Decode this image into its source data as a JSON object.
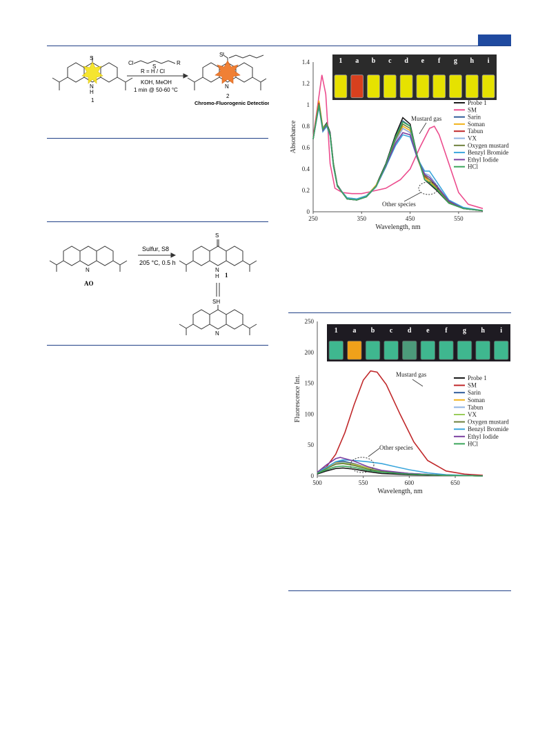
{
  "page": {
    "colors": {
      "rule": "#1f3f86",
      "tab": "#1f4aa0"
    }
  },
  "scheme1": {
    "reagent": "Cl",
    "r_label": "R = H / Cl",
    "s_label": "S",
    "r_group": "R",
    "conditions1": "KOH, MeOH",
    "conditions2": "1 min @ 50-60 °C",
    "compound1": "1",
    "compound2": "2",
    "caption": "Chromo-Fluorogenic Detection",
    "atom_N": "N",
    "atom_H": "H",
    "atom_S": "S"
  },
  "scheme2": {
    "start_label": "AO",
    "reagent": "Sulfur, S8",
    "conditions": "205 °C, 0.5 h",
    "product_label": "1",
    "atom_S": "S",
    "atom_SH": "SH",
    "atom_N": "N",
    "atom_H": "H"
  },
  "photo_labels": [
    "1",
    "a",
    "b",
    "c",
    "d",
    "e",
    "f",
    "g",
    "h",
    "i"
  ],
  "chart_data": [
    {
      "type": "line",
      "xlabel": "Wavelength, nm",
      "ylabel": "Absorbance",
      "xlim": [
        250,
        600
      ],
      "ylim": [
        0,
        1.4
      ],
      "xticks": [
        "250",
        "350",
        "450",
        "550"
      ],
      "yticks": [
        "0",
        "0.2",
        "0.4",
        "0.6",
        "0.8",
        "1",
        "1.2",
        "1.4"
      ],
      "legend_position": "right",
      "annotations": [
        "Mustard gas",
        "Other species"
      ],
      "series": [
        {
          "name": "Probe 1",
          "color": "#1a1a1a",
          "x": [
            250,
            262,
            270,
            278,
            285,
            292,
            300,
            320,
            340,
            360,
            380,
            400,
            420,
            435,
            450,
            465,
            480,
            490,
            505,
            530,
            560,
            600
          ],
          "y": [
            0.68,
            1.02,
            0.78,
            0.83,
            0.74,
            0.45,
            0.25,
            0.12,
            0.11,
            0.14,
            0.25,
            0.45,
            0.72,
            0.88,
            0.82,
            0.52,
            0.3,
            0.26,
            0.2,
            0.08,
            0.03,
            0.01
          ]
        },
        {
          "name": "SM",
          "color": "#ec4b8d",
          "x": [
            250,
            258,
            268,
            276,
            285,
            295,
            310,
            330,
            350,
            370,
            400,
            430,
            450,
            470,
            490,
            500,
            510,
            530,
            550,
            570,
            600
          ],
          "y": [
            0.7,
            0.95,
            1.28,
            1.1,
            0.45,
            0.22,
            0.18,
            0.17,
            0.17,
            0.19,
            0.22,
            0.3,
            0.4,
            0.6,
            0.78,
            0.8,
            0.72,
            0.45,
            0.18,
            0.07,
            0.03
          ]
        },
        {
          "name": "Sarin",
          "color": "#2e5b9a",
          "x": [
            250,
            262,
            270,
            278,
            285,
            292,
            300,
            320,
            340,
            360,
            380,
            400,
            420,
            435,
            450,
            465,
            480,
            490,
            505,
            530,
            560,
            600
          ],
          "y": [
            0.68,
            1.0,
            0.77,
            0.82,
            0.73,
            0.44,
            0.24,
            0.12,
            0.11,
            0.14,
            0.24,
            0.44,
            0.7,
            0.85,
            0.8,
            0.52,
            0.32,
            0.28,
            0.22,
            0.09,
            0.03,
            0.01
          ]
        },
        {
          "name": "Soman",
          "color": "#f2b21a",
          "x": [
            250,
            262,
            270,
            278,
            285,
            292,
            300,
            320,
            340,
            360,
            380,
            400,
            420,
            435,
            450,
            465,
            480,
            490,
            505,
            530,
            560,
            600
          ],
          "y": [
            0.68,
            1.04,
            0.78,
            0.82,
            0.72,
            0.44,
            0.24,
            0.13,
            0.12,
            0.15,
            0.25,
            0.42,
            0.66,
            0.8,
            0.76,
            0.5,
            0.32,
            0.28,
            0.22,
            0.09,
            0.03,
            0.01
          ]
        },
        {
          "name": "Tabun",
          "color": "#c0282a",
          "x": [
            250,
            262,
            270,
            278,
            285,
            292,
            300,
            320,
            340,
            360,
            380,
            400,
            420,
            435,
            450,
            465,
            480,
            490,
            505,
            530,
            560,
            600
          ],
          "y": [
            0.68,
            1.02,
            0.77,
            0.82,
            0.72,
            0.43,
            0.24,
            0.12,
            0.11,
            0.14,
            0.24,
            0.42,
            0.66,
            0.78,
            0.74,
            0.5,
            0.33,
            0.3,
            0.23,
            0.1,
            0.03,
            0.01
          ]
        },
        {
          "name": "VX",
          "color": "#8fb3e3",
          "x": [
            250,
            262,
            270,
            278,
            285,
            292,
            300,
            320,
            340,
            360,
            380,
            400,
            420,
            435,
            450,
            465,
            480,
            490,
            505,
            530,
            560,
            600
          ],
          "y": [
            0.68,
            1.0,
            0.76,
            0.81,
            0.72,
            0.43,
            0.24,
            0.12,
            0.11,
            0.14,
            0.23,
            0.42,
            0.66,
            0.78,
            0.74,
            0.5,
            0.36,
            0.34,
            0.25,
            0.1,
            0.03,
            0.01
          ]
        },
        {
          "name": "Oxygen mustard",
          "color": "#6d7f3a",
          "x": [
            250,
            262,
            270,
            278,
            285,
            292,
            300,
            320,
            340,
            360,
            380,
            400,
            420,
            435,
            450,
            465,
            480,
            490,
            505,
            530,
            560,
            600
          ],
          "y": [
            0.68,
            1.01,
            0.77,
            0.82,
            0.72,
            0.43,
            0.24,
            0.12,
            0.11,
            0.14,
            0.24,
            0.43,
            0.68,
            0.82,
            0.78,
            0.52,
            0.34,
            0.3,
            0.23,
            0.09,
            0.03,
            0.01
          ]
        },
        {
          "name": "Benzyl Bromide",
          "color": "#3aa6dc",
          "x": [
            250,
            262,
            270,
            278,
            285,
            292,
            300,
            320,
            340,
            360,
            380,
            400,
            420,
            435,
            450,
            465,
            480,
            490,
            505,
            530,
            560,
            600
          ],
          "y": [
            0.68,
            0.98,
            0.75,
            0.8,
            0.71,
            0.42,
            0.24,
            0.13,
            0.12,
            0.15,
            0.24,
            0.42,
            0.62,
            0.72,
            0.7,
            0.5,
            0.38,
            0.38,
            0.28,
            0.11,
            0.04,
            0.01
          ]
        },
        {
          "name": "Ethyl Iodide",
          "color": "#7a3fa0",
          "x": [
            250,
            262,
            270,
            278,
            285,
            292,
            300,
            320,
            340,
            360,
            380,
            400,
            420,
            435,
            450,
            465,
            480,
            490,
            505,
            530,
            560,
            600
          ],
          "y": [
            0.68,
            1.0,
            0.76,
            0.81,
            0.72,
            0.43,
            0.24,
            0.12,
            0.11,
            0.14,
            0.24,
            0.43,
            0.64,
            0.74,
            0.72,
            0.5,
            0.35,
            0.32,
            0.24,
            0.1,
            0.03,
            0.01
          ]
        },
        {
          "name": "HCl",
          "color": "#3aa55a",
          "x": [
            250,
            262,
            270,
            278,
            285,
            292,
            300,
            320,
            340,
            360,
            380,
            400,
            420,
            435,
            450,
            465,
            480,
            490,
            505,
            530,
            560,
            600
          ],
          "y": [
            0.68,
            1.0,
            0.77,
            0.82,
            0.72,
            0.43,
            0.24,
            0.12,
            0.11,
            0.14,
            0.24,
            0.44,
            0.7,
            0.84,
            0.8,
            0.52,
            0.3,
            0.27,
            0.21,
            0.08,
            0.03,
            0.01
          ]
        }
      ]
    },
    {
      "type": "line",
      "xlabel": "Wavelength, nm",
      "ylabel": "Fluorescence Int.",
      "xlim": [
        500,
        680
      ],
      "ylim": [
        0,
        250
      ],
      "xticks": [
        "500",
        "550",
        "600",
        "650"
      ],
      "yticks": [
        "0",
        "50",
        "100",
        "150",
        "200",
        "250"
      ],
      "legend_position": "right",
      "annotations": [
        "Mustard gas",
        "Other species"
      ],
      "series": [
        {
          "name": "Probe 1",
          "color": "#1a1a1a",
          "x": [
            500,
            510,
            520,
            528,
            540,
            555,
            570,
            600,
            640,
            680
          ],
          "y": [
            3,
            8,
            12,
            13,
            11,
            7,
            4,
            2,
            1,
            0
          ]
        },
        {
          "name": "SM",
          "color": "#c0282a",
          "x": [
            500,
            510,
            520,
            530,
            540,
            550,
            558,
            565,
            575,
            590,
            605,
            620,
            640,
            660,
            680
          ],
          "y": [
            6,
            15,
            35,
            70,
            115,
            155,
            170,
            168,
            148,
            100,
            55,
            25,
            8,
            3,
            1
          ]
        },
        {
          "name": "Sarin",
          "color": "#2e5b9a",
          "x": [
            500,
            510,
            520,
            528,
            540,
            555,
            570,
            600,
            640,
            680
          ],
          "y": [
            5,
            13,
            22,
            24,
            20,
            13,
            8,
            4,
            1,
            0
          ]
        },
        {
          "name": "Soman",
          "color": "#f2b21a",
          "x": [
            500,
            510,
            520,
            528,
            540,
            555,
            570,
            600,
            640,
            680
          ],
          "y": [
            5,
            13,
            21,
            22,
            19,
            13,
            8,
            4,
            1,
            0
          ]
        },
        {
          "name": "Tabun",
          "color": "#8fb3e3",
          "x": [
            500,
            510,
            520,
            528,
            540,
            555,
            570,
            600,
            640,
            680
          ],
          "y": [
            5,
            12,
            20,
            22,
            18,
            12,
            8,
            4,
            1,
            0
          ]
        },
        {
          "name": "VX",
          "color": "#9acd5a",
          "x": [
            500,
            510,
            520,
            528,
            540,
            555,
            570,
            600,
            640,
            680
          ],
          "y": [
            5,
            12,
            19,
            21,
            18,
            12,
            7,
            3,
            1,
            0
          ]
        },
        {
          "name": "Oxygen mustard",
          "color": "#6d7f3a",
          "x": [
            500,
            510,
            520,
            528,
            540,
            555,
            570,
            600,
            640,
            680
          ],
          "y": [
            5,
            12,
            19,
            20,
            17,
            11,
            7,
            3,
            1,
            0
          ]
        },
        {
          "name": "Benzyl Bromide",
          "color": "#3aa6dc",
          "x": [
            500,
            510,
            520,
            528,
            540,
            555,
            570,
            585,
            600,
            620,
            640,
            680
          ],
          "y": [
            6,
            14,
            23,
            26,
            25,
            23,
            20,
            15,
            10,
            5,
            2,
            0
          ]
        },
        {
          "name": "Ethyl Iodide",
          "color": "#7a3fa0",
          "x": [
            500,
            510,
            520,
            525,
            540,
            555,
            570,
            600,
            640,
            680
          ],
          "y": [
            6,
            18,
            28,
            30,
            24,
            15,
            9,
            4,
            1,
            0
          ]
        },
        {
          "name": "HCl",
          "color": "#3aa55a",
          "x": [
            500,
            510,
            520,
            528,
            540,
            555,
            570,
            600,
            640,
            680
          ],
          "y": [
            4,
            10,
            15,
            16,
            14,
            9,
            6,
            3,
            1,
            0
          ]
        }
      ]
    }
  ]
}
